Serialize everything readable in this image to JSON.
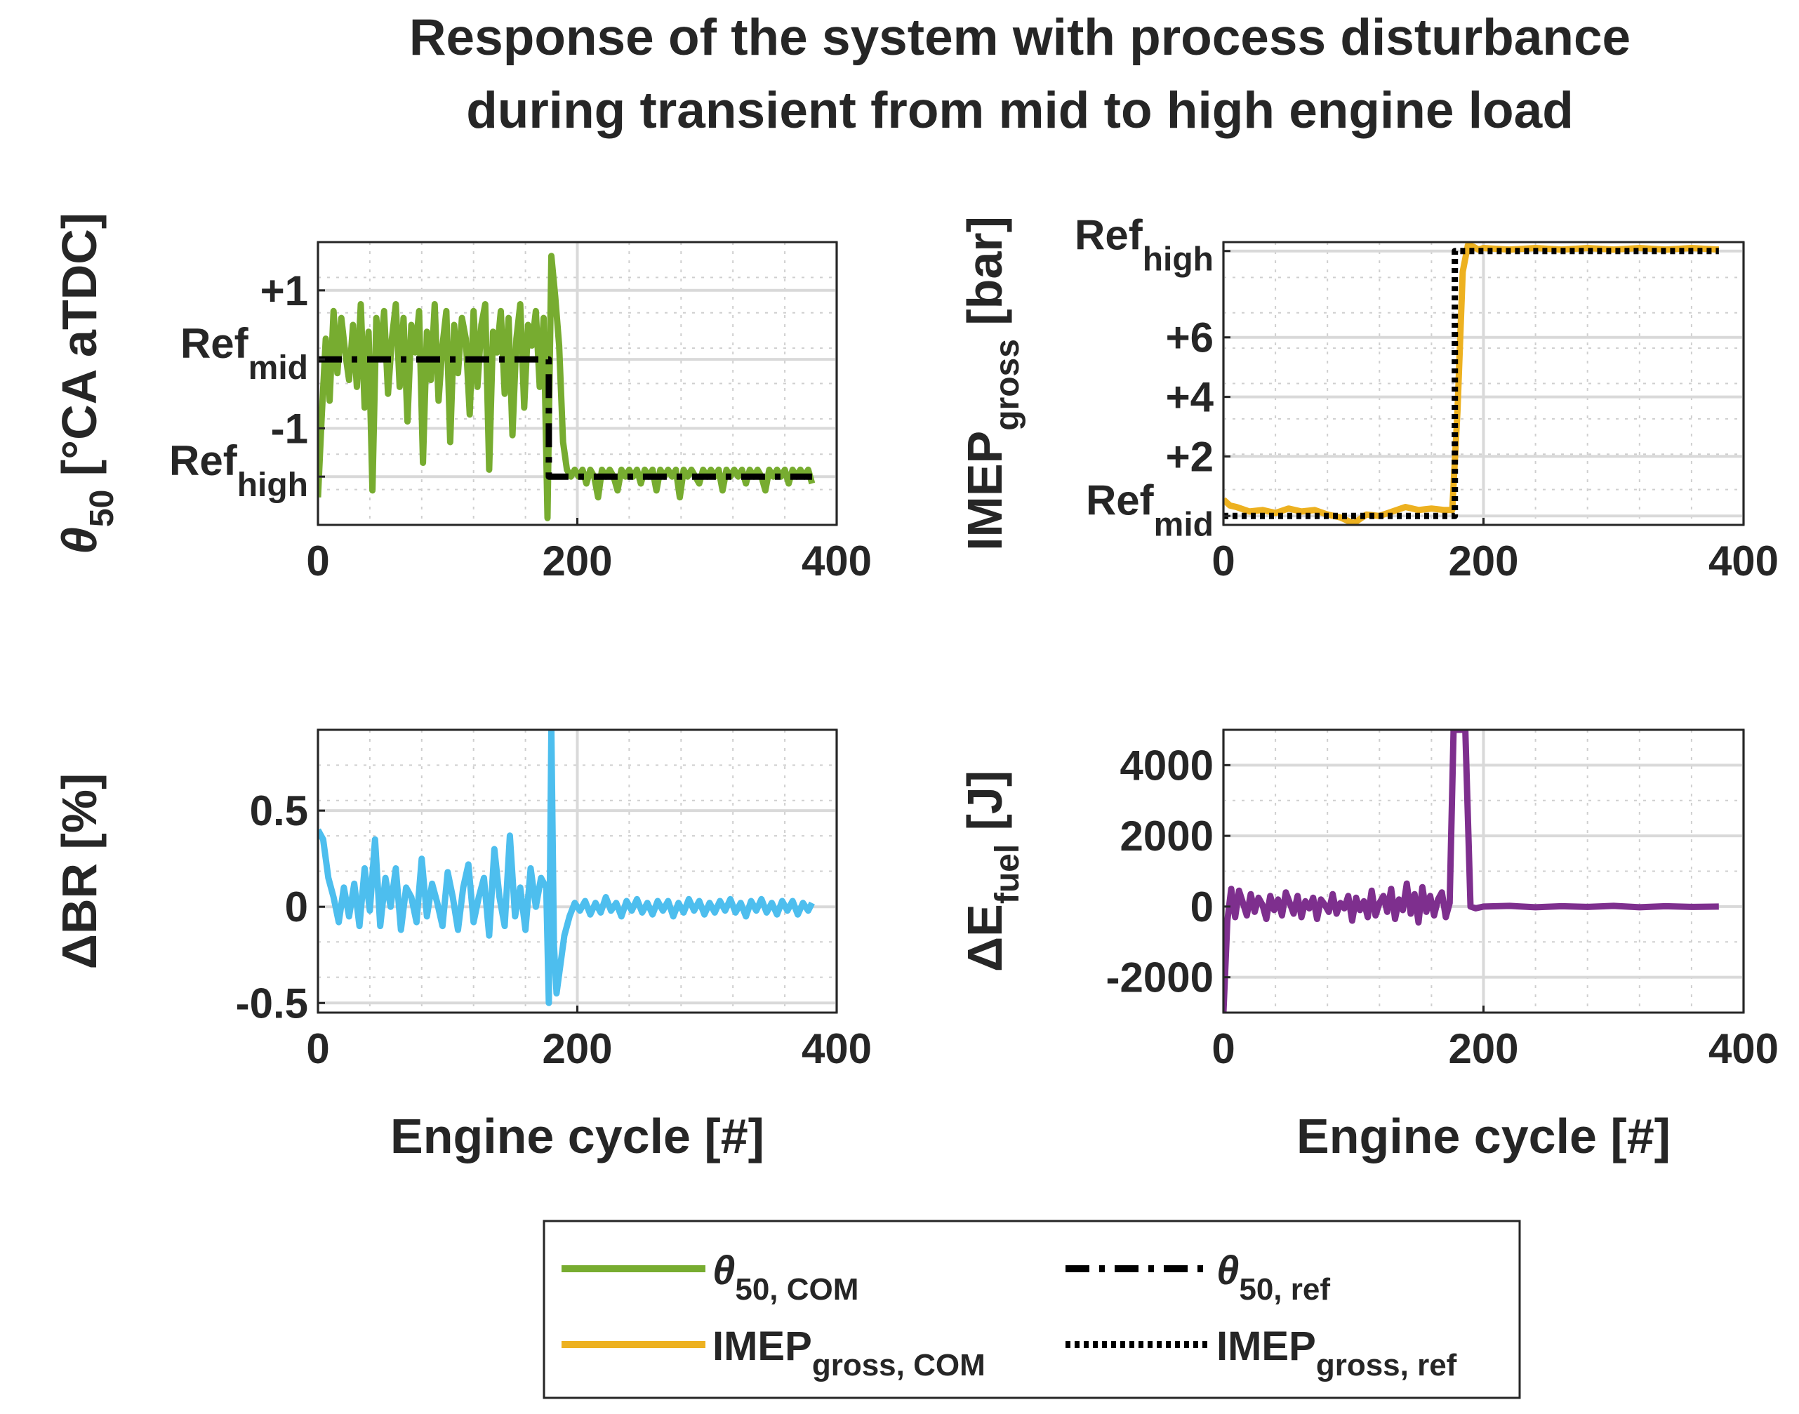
{
  "title": [
    "Response of the system with process disturbance",
    "during transient from mid to high engine load"
  ],
  "colors": {
    "green": "#77AC30",
    "orange": "#EDB120",
    "blue": "#4DBEEE",
    "purple": "#7E2F8E",
    "black": "#000000",
    "axis": "#262626",
    "grid": "#dcdcdc"
  },
  "chart_data": [
    {
      "id": "theta50",
      "type": "line",
      "ylabel": {
        "symbol": "θ",
        "sub": "50",
        "unit": "[°CA aTDC]"
      },
      "xlabel": "",
      "xlim": [
        0,
        400
      ],
      "ylim": [
        -2.4,
        1.7
      ],
      "xticks": [
        0,
        200,
        400
      ],
      "yticks": [
        {
          "value": 1,
          "label": "+1"
        },
        {
          "value": 0,
          "label": "Ref",
          "sub": "mid"
        },
        {
          "value": -1,
          "label": "-1"
        },
        {
          "value": -1.7,
          "label": "Ref",
          "sub": "high"
        }
      ],
      "grid": true,
      "series": [
        {
          "name": "θ50, COM",
          "color": "#77AC30",
          "style": "solid",
          "x": [
            0,
            3,
            6,
            9,
            12,
            15,
            18,
            21,
            24,
            27,
            30,
            33,
            36,
            39,
            42,
            45,
            48,
            51,
            54,
            57,
            60,
            63,
            66,
            69,
            72,
            75,
            78,
            81,
            84,
            87,
            90,
            93,
            96,
            99,
            102,
            105,
            108,
            111,
            114,
            117,
            120,
            123,
            126,
            129,
            132,
            135,
            138,
            141,
            144,
            147,
            150,
            153,
            156,
            159,
            162,
            165,
            168,
            171,
            174,
            177,
            180,
            183,
            186,
            189,
            192,
            195,
            198,
            201,
            204,
            207,
            210,
            213,
            216,
            219,
            222,
            225,
            228,
            231,
            234,
            237,
            240,
            243,
            246,
            249,
            252,
            255,
            258,
            261,
            264,
            267,
            270,
            273,
            276,
            279,
            282,
            285,
            288,
            291,
            294,
            297,
            300,
            303,
            306,
            309,
            312,
            315,
            318,
            321,
            324,
            327,
            330,
            333,
            336,
            339,
            342,
            345,
            348,
            351,
            354,
            357,
            360,
            363,
            366,
            369,
            372,
            375,
            378,
            381
          ],
          "y": [
            -2.0,
            -0.8,
            0.3,
            -0.6,
            0.7,
            -0.2,
            0.6,
            0.1,
            -0.3,
            0.5,
            -0.4,
            0.8,
            -0.7,
            0.4,
            -1.9,
            0.6,
            0.0,
            0.7,
            -0.5,
            0.3,
            0.8,
            -0.4,
            0.6,
            -0.9,
            0.5,
            0.1,
            0.7,
            -1.5,
            0.4,
            -0.3,
            0.8,
            -0.6,
            0.2,
            0.7,
            -1.2,
            0.5,
            -0.2,
            0.6,
            0.3,
            -0.8,
            0.7,
            -0.4,
            0.5,
            0.8,
            -1.6,
            0.4,
            0.1,
            0.7,
            -0.5,
            0.6,
            -1.1,
            0.3,
            0.8,
            -0.7,
            0.5,
            0.2,
            0.7,
            -0.4,
            0.6,
            -2.3,
            1.5,
            0.9,
            0.2,
            -1.2,
            -1.6,
            -1.7,
            -1.6,
            -1.7,
            -1.6,
            -1.8,
            -1.6,
            -1.7,
            -2.0,
            -1.6,
            -1.7,
            -1.6,
            -1.7,
            -1.9,
            -1.6,
            -1.7,
            -1.6,
            -1.7,
            -1.6,
            -1.8,
            -1.6,
            -1.7,
            -1.6,
            -1.9,
            -1.6,
            -1.7,
            -1.6,
            -1.7,
            -1.6,
            -2.0,
            -1.6,
            -1.7,
            -1.6,
            -1.7,
            -1.8,
            -1.6,
            -1.7,
            -1.6,
            -1.7,
            -1.6,
            -1.9,
            -1.6,
            -1.7,
            -1.6,
            -1.7,
            -1.6,
            -1.8,
            -1.6,
            -1.7,
            -1.6,
            -1.7,
            -1.9,
            -1.6,
            -1.7,
            -1.6,
            -1.7,
            -1.6,
            -1.8,
            -1.6,
            -1.7,
            -1.6,
            -1.7,
            -1.6,
            -1.8
          ]
        },
        {
          "name": "θ50, ref",
          "color": "#000000",
          "style": "dashdot",
          "x": [
            0,
            178,
            178,
            381
          ],
          "y": [
            0,
            0,
            -1.7,
            -1.7
          ]
        }
      ]
    },
    {
      "id": "imep",
      "type": "line",
      "ylabel": {
        "symbol": "IMEP",
        "sub": "gross",
        "unit": "[bar]"
      },
      "xlabel": "",
      "xlim": [
        0,
        400
      ],
      "ylim": [
        -0.3,
        9.2
      ],
      "xticks": [
        0,
        200,
        400
      ],
      "yticks": [
        {
          "value": 8.9,
          "label": "Ref",
          "sub": "high"
        },
        {
          "value": 6,
          "label": "+6"
        },
        {
          "value": 4,
          "label": "+4"
        },
        {
          "value": 2,
          "label": "+2"
        },
        {
          "value": 0,
          "label": "Ref",
          "sub": "mid"
        }
      ],
      "grid": true,
      "series": [
        {
          "name": "IMEPgross, COM",
          "color": "#EDB120",
          "style": "solid",
          "x": [
            0,
            5,
            10,
            20,
            30,
            40,
            50,
            60,
            70,
            80,
            90,
            100,
            110,
            120,
            130,
            140,
            150,
            160,
            170,
            176,
            180,
            184,
            188,
            192,
            196,
            200,
            220,
            240,
            260,
            280,
            300,
            320,
            340,
            360,
            381
          ],
          "y": [
            0.55,
            0.35,
            0.3,
            0.15,
            0.2,
            0.1,
            0.25,
            0.15,
            0.2,
            0.05,
            -0.05,
            -0.25,
            0.05,
            0.0,
            0.15,
            0.3,
            0.2,
            0.25,
            0.2,
            0.2,
            3.5,
            8.2,
            9.1,
            9.05,
            8.95,
            9.0,
            8.95,
            9.0,
            8.95,
            9.0,
            8.95,
            9.0,
            8.95,
            9.0,
            8.95
          ]
        },
        {
          "name": "IMEPgross, ref",
          "color": "#000000",
          "style": "dotted",
          "x": [
            0,
            178,
            178,
            381
          ],
          "y": [
            0,
            0,
            8.9,
            8.9
          ]
        }
      ]
    },
    {
      "id": "dbr",
      "type": "line",
      "ylabel": {
        "symbol": "ΔBR",
        "sub": "",
        "unit": "[%]"
      },
      "xlabel": "Engine cycle [#]",
      "xlim": [
        0,
        400
      ],
      "ylim": [
        -0.55,
        0.92
      ],
      "xticks": [
        0,
        200,
        400
      ],
      "yticks": [
        {
          "value": 0.5,
          "label": "0.5"
        },
        {
          "value": 0,
          "label": "0"
        },
        {
          "value": -0.5,
          "label": "-0.5"
        }
      ],
      "grid": true,
      "series": [
        {
          "name": "ΔBR",
          "color": "#4DBEEE",
          "style": "solid",
          "x": [
            0,
            4,
            8,
            12,
            16,
            20,
            24,
            28,
            32,
            36,
            40,
            44,
            48,
            52,
            56,
            60,
            64,
            68,
            72,
            76,
            80,
            84,
            88,
            92,
            96,
            100,
            104,
            108,
            112,
            116,
            120,
            124,
            128,
            132,
            136,
            140,
            144,
            148,
            152,
            156,
            160,
            164,
            168,
            172,
            176,
            178,
            180,
            182,
            184,
            186,
            188,
            190,
            194,
            198,
            202,
            206,
            210,
            214,
            218,
            222,
            226,
            230,
            234,
            238,
            242,
            246,
            250,
            254,
            258,
            262,
            266,
            270,
            274,
            278,
            282,
            286,
            290,
            294,
            298,
            302,
            306,
            310,
            314,
            318,
            322,
            326,
            330,
            334,
            338,
            342,
            346,
            350,
            354,
            358,
            362,
            366,
            370,
            374,
            378,
            381
          ],
          "y": [
            0.4,
            0.35,
            0.15,
            0.05,
            -0.08,
            0.1,
            -0.05,
            0.12,
            -0.1,
            0.2,
            -0.02,
            0.35,
            -0.1,
            0.15,
            0.0,
            0.2,
            -0.12,
            0.1,
            0.05,
            -0.08,
            0.25,
            -0.05,
            0.12,
            0.02,
            -0.1,
            0.18,
            0.05,
            -0.12,
            0.1,
            0.22,
            -0.08,
            0.05,
            0.15,
            -0.15,
            0.3,
            0.05,
            -0.1,
            0.37,
            -0.05,
            0.1,
            -0.12,
            0.2,
            0.0,
            0.15,
            0.1,
            -0.5,
            0.92,
            -0.2,
            -0.45,
            -0.35,
            -0.25,
            -0.15,
            -0.05,
            0.02,
            -0.02,
            0.03,
            -0.04,
            0.02,
            -0.03,
            0.05,
            -0.02,
            0.02,
            -0.05,
            0.03,
            -0.02,
            0.04,
            -0.03,
            0.02,
            -0.04,
            0.03,
            -0.02,
            0.03,
            -0.05,
            0.02,
            -0.03,
            0.04,
            -0.02,
            0.03,
            -0.04,
            0.02,
            -0.03,
            0.03,
            -0.02,
            0.04,
            -0.03,
            0.02,
            -0.05,
            0.03,
            -0.02,
            0.04,
            -0.03,
            0.02,
            -0.04,
            0.03,
            -0.02,
            0.03,
            -0.04,
            0.02,
            -0.02,
            0.02
          ]
        }
      ]
    },
    {
      "id": "dEfuel",
      "type": "line",
      "ylabel": {
        "symbol": "ΔE",
        "sub": "fuel",
        "unit": "[J]"
      },
      "xlabel": "Engine cycle [#]",
      "xlim": [
        0,
        400
      ],
      "ylim": [
        -3000,
        5000
      ],
      "xticks": [
        0,
        200,
        400
      ],
      "yticks": [
        {
          "value": 4000,
          "label": "4000"
        },
        {
          "value": 2000,
          "label": "2000"
        },
        {
          "value": 0,
          "label": "0"
        },
        {
          "value": -2000,
          "label": "-2000"
        }
      ],
      "grid": true,
      "series": [
        {
          "name": "ΔEfuel",
          "color": "#7E2F8E",
          "style": "solid",
          "x": [
            0,
            3,
            6,
            9,
            12,
            15,
            18,
            21,
            24,
            27,
            30,
            33,
            36,
            39,
            42,
            45,
            48,
            51,
            54,
            57,
            60,
            63,
            66,
            69,
            72,
            75,
            78,
            81,
            84,
            87,
            90,
            93,
            96,
            99,
            102,
            105,
            108,
            111,
            114,
            117,
            120,
            123,
            126,
            129,
            132,
            135,
            138,
            141,
            144,
            147,
            150,
            153,
            156,
            159,
            162,
            165,
            168,
            171,
            174,
            177,
            180,
            186,
            190,
            194,
            200,
            220,
            240,
            260,
            280,
            300,
            320,
            340,
            360,
            381
          ],
          "y": [
            -3000,
            -400,
            500,
            -300,
            450,
            100,
            -250,
            350,
            -150,
            250,
            50,
            -350,
            300,
            -100,
            200,
            -250,
            400,
            100,
            -200,
            300,
            -300,
            150,
            -50,
            250,
            -350,
            200,
            50,
            -150,
            350,
            -200,
            100,
            -50,
            300,
            -400,
            250,
            -100,
            150,
            -300,
            450,
            -250,
            100,
            300,
            -150,
            500,
            -350,
            200,
            -100,
            650,
            -200,
            350,
            -450,
            550,
            -150,
            300,
            -250,
            200,
            400,
            -300,
            100,
            5000,
            5000,
            5000,
            0,
            -50,
            0,
            20,
            -20,
            10,
            -10,
            20,
            -20,
            10,
            -10,
            0
          ]
        }
      ]
    }
  ],
  "legend": {
    "entries": [
      {
        "symbol": "θ",
        "sub": "50, COM",
        "color": "#77AC30",
        "style": "solid"
      },
      {
        "symbol": "θ",
        "sub": "50, ref",
        "color": "#000000",
        "style": "dashdot"
      },
      {
        "symbol": "IMEP",
        "sub": "gross, COM",
        "color": "#EDB120",
        "style": "solid"
      },
      {
        "symbol": "IMEP",
        "sub": "gross, ref",
        "color": "#000000",
        "style": "dotted"
      }
    ]
  }
}
